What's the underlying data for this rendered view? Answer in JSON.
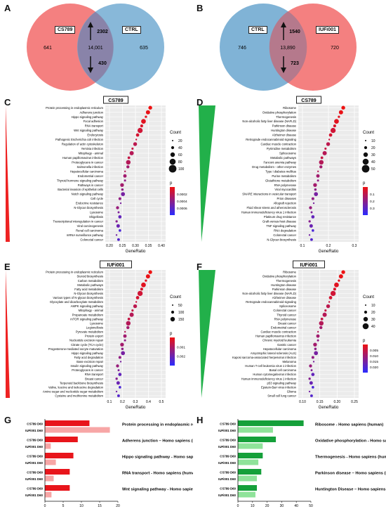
{
  "panels": {
    "A": {
      "label": "A",
      "left_set": "CS789",
      "right_set": "CTRL",
      "left_only": "641",
      "shared": "14,001",
      "right_only": "635",
      "up": "2302",
      "down": "430"
    },
    "B": {
      "label": "B",
      "left_set": "CTRL",
      "right_set": "IUFi001",
      "left_only": "746",
      "shared": "13,890",
      "right_only": "720",
      "up": "1540",
      "down": "723"
    },
    "C": {
      "label": "C",
      "title": "CS789",
      "xlabel": "GeneRatio",
      "xticks": [
        "0.20",
        "0.25",
        "0.30",
        "0.35",
        "0.40"
      ],
      "legend_count_title": "Count",
      "count_levels": [
        "20",
        "40",
        "60",
        "80",
        "100"
      ],
      "legend_p_title": "p",
      "p_ticks": [
        "0.0002",
        "0.0004",
        "0.0006"
      ],
      "terms": [
        "Protein processing in endoplasmic reticulum",
        "Adherens junction",
        "Hippo signaling pathway",
        "Focal adhesion",
        "RNA transport",
        "Wnt signaling pathway",
        "Endocytosis",
        "Pathogenic Escherichia coli infection",
        "Regulation of actin cytoskeleton",
        "Yersinia infection",
        "Mitophagy - animal",
        "Human papillomavirus infection",
        "Proteoglycans in cancer",
        "Salmonella infection",
        "Hepatocellular carcinoma",
        "Endometrial cancer",
        "Thyroid hormone signaling pathway",
        "Pathways in cancer",
        "Bacterial invasion of epithelial cells",
        "Notch signaling pathway",
        "Cell cycle",
        "Endocrine resistance",
        "N-Glycan biosynthesis",
        "Lysosome",
        "Shigellosis",
        "Transcriptional misregulation in cancer",
        "Viral carcinogenesis",
        "Renal cell carcinoma",
        "mRNA surveillance pathway",
        "Colorectal cancer"
      ]
    },
    "D": {
      "label": "D",
      "title": "CS789",
      "xlabel": "GeneRatio",
      "xticks": [
        "0.1",
        "0.2",
        "0.3"
      ],
      "legend_count_title": "Count",
      "count_levels": [
        "10",
        "20",
        "30",
        "40",
        "50"
      ],
      "legend_p_title": "p",
      "p_ticks": [
        "0.1",
        "0.2",
        "0.3"
      ],
      "terms": [
        "Ribosome",
        "Oxidative phosphorylation",
        "Thermogenesis",
        "Non-alcoholic fatty liver disease (NAFLD)",
        "Parkinson disease",
        "Huntington disease",
        "Alzheimer disease",
        "Retrograde endocannabinoid signaling",
        "Cardiac muscle contraction",
        "Pyrimidine metabolism",
        "Spliceosome",
        "Metabolic pathways",
        "Fanconi anemia pathway",
        "Drug metabolism - other enzymes",
        "Type I diabetes mellitus",
        "Purine metabolism",
        "Glutathione metabolism",
        "RNA polymerase",
        "Viral myocarditis",
        "SNARE interactions in vesicular transport",
        "Prion diseases",
        "Allograft rejection",
        "Fluid shear stress and atherosclerosis",
        "Human immunodeficiency virus 1 infection",
        "Platinum drug resistance",
        "Graft-versus-host disease",
        "TNF signaling pathway",
        "RNA degradation",
        "Colorectal cancer",
        "N-Glycan biosynthesis"
      ]
    },
    "E": {
      "label": "E",
      "title": "IUFi001",
      "xlabel": "GeneRatio",
      "xticks": [
        "0.1",
        "0.2",
        "0.3",
        "0.4",
        "0.5"
      ],
      "legend_count_title": "Count",
      "count_levels": [
        "50",
        "100",
        "150"
      ],
      "legend_p_title": "p",
      "p_ticks": [
        "0.001",
        "0.002"
      ],
      "terms": [
        "Protein processing in endoplasmic reticulum",
        "Steroid biosynthesis",
        "Carbon metabolism",
        "Metabolic pathways",
        "Fatty acid metabolism",
        "N-Glycan biosynthesis",
        "Various types of N-glycan biosynthesis",
        "Glyoxylate and dicarboxylate metabolism",
        "AMPK signaling pathway",
        "Mitophagy - animal",
        "Propanoate metabolism",
        "mTOR signaling pathway",
        "Lysosome",
        "Legionellosis",
        "Pyruvate metabolism",
        "Protein export",
        "Nucleotide excision repair",
        "Citrate cycle (TCA cycle)",
        "Progesterone-mediated oocyte maturation",
        "Hippo signaling pathway",
        "Fatty acid degradation",
        "Base excision repair",
        "Insulin signaling pathway",
        "Proteoglycans in cancer",
        "RNA transport",
        "Breast cancer",
        "Terpenoid backbone biosynthesis",
        "Valine, leucine and isoleucine degradation",
        "Amino sugar and nucleotide sugar metabolism",
        "Cysteine and methionine metabolism"
      ]
    },
    "F": {
      "label": "F",
      "title": "IUFi001",
      "xlabel": "GeneRatio",
      "xticks": [
        "0.10",
        "0.15",
        "0.20",
        "0.25"
      ],
      "legend_count_title": "Count",
      "count_levels": [
        "10",
        "20",
        "30",
        "40"
      ],
      "legend_p_title": "p",
      "p_ticks": [
        "0.005",
        "0.010",
        "0.015",
        "0.020"
      ],
      "terms": [
        "Ribosome",
        "Oxidative phosphorylation",
        "Thermogenesis",
        "Huntington disease",
        "Parkinson disease",
        "Non-alcoholic fatty liver disease (NAFLD)",
        "Alzheimer disease",
        "Retrograde endocannabinoid signaling",
        "Spliceosome",
        "Colorectal cancer",
        "Thyroid cancer",
        "RNA polymerase",
        "Breast cancer",
        "Endometrial cancer",
        "Cardiac muscle contraction",
        "Human papillomavirus infection",
        "Chronic myeloid leukemia",
        "Gastric cancer",
        "Hepatocellular carcinoma",
        "Amyotrophic lateral sclerosis (ALS)",
        "Kaposi sarcoma-associated herpesvirus infection",
        "Melanoma",
        "Human T-cell leukemia virus 1 infection",
        "Basal cell carcinoma",
        "Human cytomegalovirus infection",
        "Human immunodeficiency virus 1 infection",
        "p53 signaling pathway",
        "Epstein-Barr virus infection",
        "Glioma",
        "Small cell lung cancer"
      ]
    },
    "G": {
      "label": "G",
      "xlabel": "Enrichment score [−log₁₀(p-value)]",
      "xticks": [
        "0",
        "5",
        "10",
        "15",
        "20"
      ],
      "row_labels": [
        "CS789 D60",
        "IUFi001 D60"
      ],
      "groups": [
        {
          "name": "Protein processing in endoplasmic reticulum - Homo sapiens (human)",
          "values": [
            12.2,
            17.8
          ]
        },
        {
          "name": "Adherens junction – Homo sapiens (human)",
          "values": [
            9.0,
            1.6
          ]
        },
        {
          "name": "Hippo signaling pathway - Homo sapiens (human)",
          "values": [
            7.8,
            3.0
          ]
        },
        {
          "name": "RNA transport - Homo sapiens (human)",
          "values": [
            6.8,
            2.4
          ]
        },
        {
          "name": "Wnt signaling pathway - Homo sapiens (human)",
          "values": [
            6.8,
            1.8
          ]
        }
      ]
    },
    "H": {
      "label": "H",
      "xlabel": "Enrichment score [−log₁₀(p-value)]",
      "xticks": [
        "0",
        "10",
        "20",
        "30",
        "40",
        "50"
      ],
      "row_labels": [
        "CS789 D60",
        "IUFi001 D60"
      ],
      "groups": [
        {
          "name": "Ribosome - Homo sapiens (human)",
          "values": [
            45,
            24
          ]
        },
        {
          "name": "Oxidative phosphorylation - Homo sapiens (human)",
          "values": [
            26,
            17
          ]
        },
        {
          "name": "Thermogenesis - Homo sapiens (human)",
          "values": [
            17,
            14
          ]
        },
        {
          "name": "Parkinson disease – Homo sapiens (human)",
          "values": [
            16,
            13
          ]
        },
        {
          "name": "Huntington Disease – Homo sapiens (human)",
          "values": [
            13,
            12
          ]
        }
      ]
    }
  },
  "colors": {
    "venn_red": "#f26a6a",
    "venn_blue": "#6aa6cf",
    "bar_red_dark": "#e8151b",
    "bar_red_light": "#f7a6a6",
    "bar_green_dark": "#15a03a",
    "bar_green_light": "#8fe39a",
    "dot_red": "#ee1111",
    "dot_blue": "#2b2bff",
    "wedge_red": "#ee2222",
    "wedge_green": "#22b04a"
  }
}
